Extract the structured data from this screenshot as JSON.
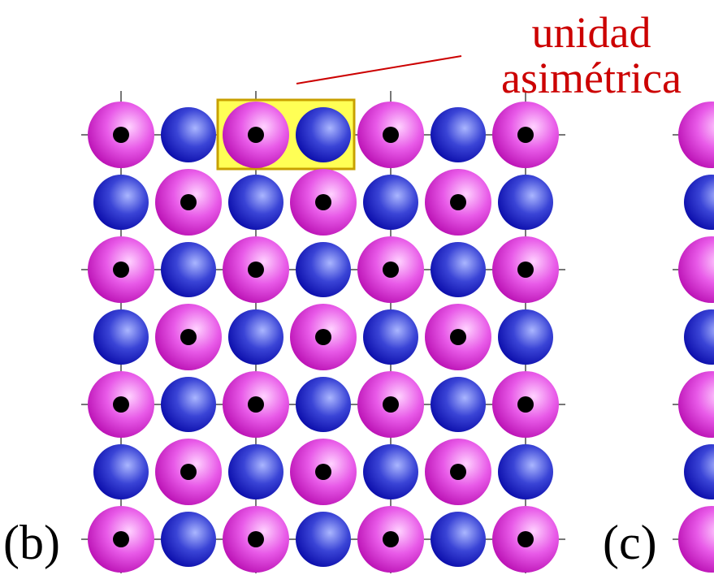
{
  "labels": {
    "annotation_line1": "unidad",
    "annotation_line2": "asimétrica",
    "panel_b": "(b)",
    "panel_c": "(c)"
  },
  "lattice": {
    "rows": 7,
    "cols": 7,
    "highlighted_row": 0,
    "highlighted_cols": [
      2,
      3
    ]
  },
  "colors": {
    "annotation": "#cc0000",
    "grid_line": "#777777",
    "highlight_fill": "#ffff55",
    "highlight_stroke": "#c8a000",
    "pink_atom_dark": "#b800b0",
    "pink_atom_light": "#ffc8ff",
    "blue_atom_dark": "#0000a8",
    "blue_atom_light": "#a8b4ff",
    "site_dot": "#000000"
  }
}
